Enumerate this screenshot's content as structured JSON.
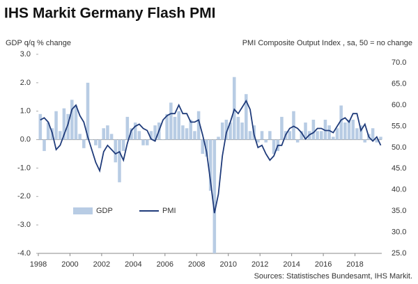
{
  "chart_data": {
    "type": "bar-line",
    "title": "IHS Markit Germany Flash PMI",
    "ylabel": "GDP q/q % change",
    "y2label": "PMI Composite  Output Index , sa, 50 = no change",
    "source": "Sources: Statistisches Bundesamt, IHS Markit.",
    "x": [
      1998.125,
      1998.375,
      1998.625,
      1998.875,
      1999.125,
      1999.375,
      1999.625,
      1999.875,
      2000.125,
      2000.375,
      2000.625,
      2000.875,
      2001.125,
      2001.375,
      2001.625,
      2001.875,
      2002.125,
      2002.375,
      2002.625,
      2002.875,
      2003.125,
      2003.375,
      2003.625,
      2003.875,
      2004.125,
      2004.375,
      2004.625,
      2004.875,
      2005.125,
      2005.375,
      2005.625,
      2005.875,
      2006.125,
      2006.375,
      2006.625,
      2006.875,
      2007.125,
      2007.375,
      2007.625,
      2007.875,
      2008.125,
      2008.375,
      2008.625,
      2008.875,
      2009.125,
      2009.375,
      2009.625,
      2009.875,
      2010.125,
      2010.375,
      2010.625,
      2010.875,
      2011.125,
      2011.375,
      2011.625,
      2011.875,
      2012.125,
      2012.375,
      2012.625,
      2012.875,
      2013.125,
      2013.375,
      2013.625,
      2013.875,
      2014.125,
      2014.375,
      2014.625,
      2014.875,
      2015.125,
      2015.375,
      2015.625,
      2015.875,
      2016.125,
      2016.375,
      2016.625,
      2016.875,
      2017.125,
      2017.375,
      2017.625,
      2017.875,
      2018.125,
      2018.375,
      2018.625,
      2018.875,
      2019.125,
      2019.375,
      2019.625
    ],
    "series": [
      {
        "name": "GDP",
        "kind": "bar",
        "axis": "y",
        "color": "#b8cce4",
        "values": [
          0.9,
          -0.4,
          0.6,
          0.4,
          1.0,
          0.3,
          1.1,
          0.9,
          1.4,
          1.2,
          0.2,
          -0.3,
          2.0,
          0.0,
          -0.2,
          -0.3,
          0.4,
          0.5,
          0.2,
          -0.8,
          -1.5,
          -0.4,
          0.8,
          0.4,
          0.6,
          0.3,
          -0.2,
          -0.2,
          0.3,
          0.5,
          0.6,
          0.0,
          0.9,
          1.3,
          0.8,
          1.0,
          0.5,
          0.4,
          0.7,
          0.3,
          1.0,
          -0.5,
          -0.6,
          -1.8,
          -4.0,
          0.1,
          0.6,
          0.7,
          0.6,
          2.2,
          0.8,
          0.6,
          1.6,
          0.3,
          0.5,
          -0.1,
          0.3,
          -0.1,
          0.3,
          -0.5,
          -0.4,
          0.8,
          0.3,
          0.3,
          1.0,
          -0.1,
          0.3,
          0.6,
          0.3,
          0.7,
          0.3,
          0.3,
          0.7,
          0.5,
          0.1,
          0.4,
          1.2,
          0.6,
          0.7,
          0.7,
          0.4,
          0.5,
          -0.1,
          0.2,
          0.4,
          -0.1,
          0.1
        ]
      },
      {
        "name": "PMI",
        "kind": "line",
        "axis": "y2",
        "color": "#1f3b7a",
        "values": [
          56.5,
          57,
          56,
          53.5,
          49.5,
          50.5,
          53,
          55.5,
          59,
          60,
          57.5,
          56,
          52.5,
          49.5,
          46.5,
          44.5,
          49,
          50.5,
          49.5,
          48.5,
          49,
          47,
          51,
          54,
          55,
          55.5,
          54.5,
          54,
          52,
          51.5,
          54,
          56.5,
          57.5,
          58,
          58,
          60,
          58,
          58,
          56,
          56,
          56.5,
          53,
          49,
          42,
          34.5,
          39,
          48,
          53.5,
          56,
          59,
          58,
          59.5,
          61,
          59,
          53,
          50,
          50.5,
          48.5,
          47,
          48,
          50.5,
          50.5,
          53,
          54.5,
          55,
          54.5,
          53.5,
          52,
          53,
          53.5,
          54.5,
          54.5,
          54,
          54,
          53.5,
          55,
          56.5,
          57,
          56,
          58,
          58,
          54,
          55.5,
          52.5,
          51.5,
          52.5,
          50.5
        ]
      }
    ],
    "xlim": [
      1998,
      2020
    ],
    "xticks": [
      1998,
      2000,
      2002,
      2004,
      2006,
      2008,
      2010,
      2012,
      2014,
      2016,
      2018
    ],
    "ylim": [
      -4,
      3
    ],
    "yticks": [
      {
        "value": -4,
        "label": "-4.0"
      },
      {
        "value": -3,
        "label": "-3.0"
      },
      {
        "value": -2,
        "label": "-2.0"
      },
      {
        "value": -1,
        "label": "-1.0"
      },
      {
        "value": 0,
        "label": "0.0"
      },
      {
        "value": 1,
        "label": "1.0"
      },
      {
        "value": 2,
        "label": "2.0"
      },
      {
        "value": 3,
        "label": "3.0"
      }
    ],
    "y2lim": [
      25,
      72
    ],
    "y2ticks": [
      {
        "value": 25,
        "label": "25.0"
      },
      {
        "value": 30,
        "label": "30.0"
      },
      {
        "value": 35,
        "label": "35.0"
      },
      {
        "value": 40,
        "label": "40.0"
      },
      {
        "value": 45,
        "label": "45.0"
      },
      {
        "value": 50,
        "label": "50.0"
      },
      {
        "value": 55,
        "label": "55.0"
      },
      {
        "value": 60,
        "label": "60.0"
      },
      {
        "value": 65,
        "label": "65.0"
      },
      {
        "value": 70,
        "label": "70.0"
      }
    ]
  }
}
